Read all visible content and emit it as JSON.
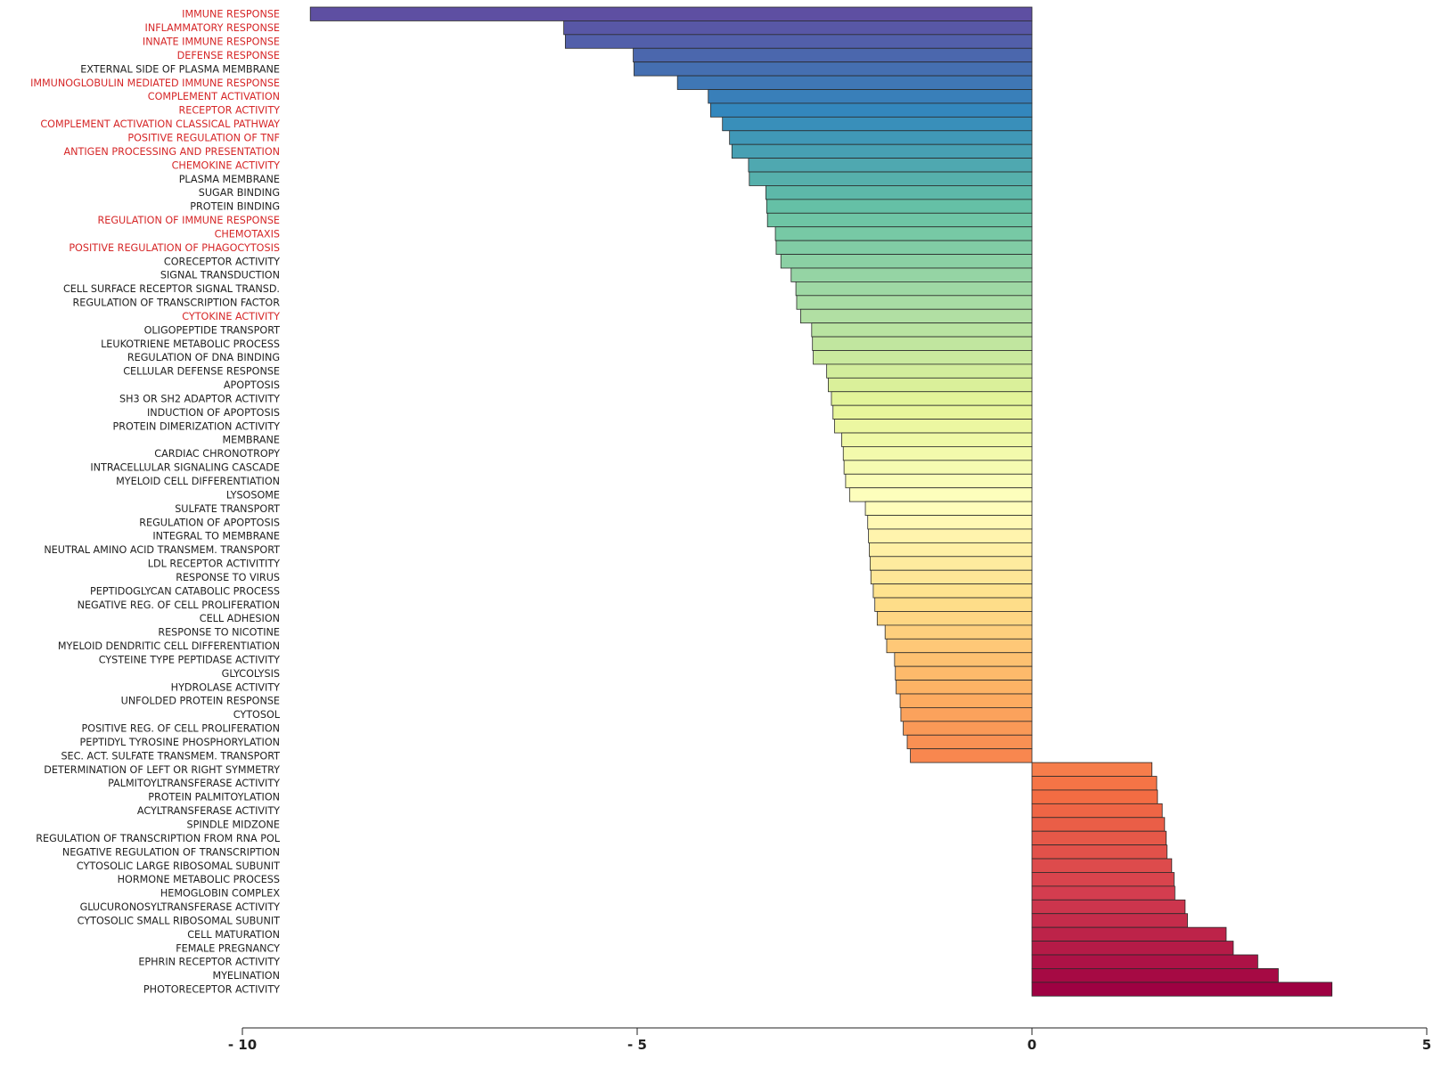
{
  "chart_data": {
    "type": "bar",
    "orientation": "horizontal",
    "title": "",
    "xlabel": "",
    "ylabel": "",
    "xlim": [
      -10,
      5
    ],
    "x_ticks": [
      {
        "value": -10,
        "label": "- 10"
      },
      {
        "value": -5,
        "label": "- 5"
      },
      {
        "value": 0,
        "label": "0"
      },
      {
        "value": 5,
        "label": "5"
      }
    ],
    "grid": false,
    "legend": "none",
    "label_colors": {
      "highlight": "#d62728",
      "normal": "#222222"
    },
    "color_scale": [
      "#5e4fa2",
      "#3288bd",
      "#66c2a5",
      "#abdda4",
      "#e6f598",
      "#ffffbf",
      "#fee08b",
      "#fdae61",
      "#f46d43",
      "#d53e4f",
      "#9e0142"
    ],
    "categories": [
      {
        "label": "IMMUNE RESPONSE",
        "value": -9.14,
        "highlight": true
      },
      {
        "label": "INFLAMMATORY RESPONSE",
        "value": -5.93,
        "highlight": true
      },
      {
        "label": "INNATE IMMUNE RESPONSE",
        "value": -5.91,
        "highlight": true
      },
      {
        "label": "DEFENSE RESPONSE",
        "value": -5.05,
        "highlight": true
      },
      {
        "label": "EXTERNAL SIDE OF PLASMA MEMBRANE",
        "value": -5.04,
        "highlight": false
      },
      {
        "label": "IMMUNOGLOBULIN MEDIATED IMMUNE RESPONSE",
        "value": -4.49,
        "highlight": true
      },
      {
        "label": "COMPLEMENT ACTIVATION",
        "value": -4.1,
        "highlight": true
      },
      {
        "label": "RECEPTOR ACTIVITY",
        "value": -4.07,
        "highlight": true
      },
      {
        "label": "COMPLEMENT ACTIVATION CLASSICAL PATHWAY",
        "value": -3.92,
        "highlight": true
      },
      {
        "label": "POSITIVE REGULATION OF TNF",
        "value": -3.83,
        "highlight": true
      },
      {
        "label": "ANTIGEN PROCESSING AND PRESENTATION",
        "value": -3.8,
        "highlight": true
      },
      {
        "label": "CHEMOKINE ACTIVITY",
        "value": -3.59,
        "highlight": true
      },
      {
        "label": "PLASMA MEMBRANE",
        "value": -3.58,
        "highlight": false
      },
      {
        "label": "SUGAR BINDING",
        "value": -3.37,
        "highlight": false
      },
      {
        "label": "PROTEIN BINDING",
        "value": -3.36,
        "highlight": false
      },
      {
        "label": "REGULATION OF IMMUNE RESPONSE",
        "value": -3.35,
        "highlight": true
      },
      {
        "label": "CHEMOTAXIS",
        "value": -3.25,
        "highlight": true
      },
      {
        "label": "POSITIVE REGULATION OF PHAGOCYTOSIS",
        "value": -3.24,
        "highlight": true
      },
      {
        "label": "CORECEPTOR ACTIVITY",
        "value": -3.18,
        "highlight": false
      },
      {
        "label": "SIGNAL TRANSDUCTION",
        "value": -3.05,
        "highlight": false
      },
      {
        "label": "CELL SURFACE RECEPTOR SIGNAL TRANSD.",
        "value": -2.99,
        "highlight": false
      },
      {
        "label": "REGULATION OF TRANSCRIPTION FACTOR",
        "value": -2.98,
        "highlight": false
      },
      {
        "label": "CYTOKINE ACTIVITY",
        "value": -2.93,
        "highlight": true
      },
      {
        "label": "OLIGOPEPTIDE TRANSPORT",
        "value": -2.79,
        "highlight": false
      },
      {
        "label": "LEUKOTRIENE METABOLIC PROCESS",
        "value": -2.78,
        "highlight": false
      },
      {
        "label": "REGULATION OF DNA BINDING",
        "value": -2.77,
        "highlight": false
      },
      {
        "label": "CELLULAR DEFENSE RESPONSE",
        "value": -2.6,
        "highlight": false
      },
      {
        "label": "APOPTOSIS",
        "value": -2.58,
        "highlight": false
      },
      {
        "label": "SH3 OR SH2 ADAPTOR ACTIVITY",
        "value": -2.54,
        "highlight": false
      },
      {
        "label": "INDUCTION OF APOPTOSIS",
        "value": -2.52,
        "highlight": false
      },
      {
        "label": "PROTEIN DIMERIZATION ACTIVITY",
        "value": -2.5,
        "highlight": false
      },
      {
        "label": "MEMBRANE",
        "value": -2.41,
        "highlight": false
      },
      {
        "label": "CARDIAC CHRONOTROPY",
        "value": -2.39,
        "highlight": false
      },
      {
        "label": "INTRACELLULAR SIGNALING CASCADE",
        "value": -2.38,
        "highlight": false
      },
      {
        "label": "MYELOID CELL DIFFERENTIATION",
        "value": -2.36,
        "highlight": false
      },
      {
        "label": "LYSOSOME",
        "value": -2.31,
        "highlight": false
      },
      {
        "label": "SULFATE TRANSPORT",
        "value": -2.11,
        "highlight": false
      },
      {
        "label": "REGULATION OF APOPTOSIS",
        "value": -2.08,
        "highlight": false
      },
      {
        "label": "INTEGRAL TO MEMBRANE",
        "value": -2.07,
        "highlight": false
      },
      {
        "label": "NEUTRAL AMINO ACID TRANSMEM. TRANSPORT",
        "value": -2.06,
        "highlight": false
      },
      {
        "label": "LDL RECEPTOR ACTIVITITY",
        "value": -2.05,
        "highlight": false
      },
      {
        "label": "RESPONSE TO VIRUS",
        "value": -2.04,
        "highlight": false
      },
      {
        "label": "PEPTIDOGLYCAN CATABOLIC PROCESS",
        "value": -2.01,
        "highlight": false
      },
      {
        "label": "NEGATIVE REG. OF CELL PROLIFERATION",
        "value": -1.99,
        "highlight": false
      },
      {
        "label": "CELL ADHESION",
        "value": -1.96,
        "highlight": false
      },
      {
        "label": "RESPONSE TO NICOTINE",
        "value": -1.86,
        "highlight": false
      },
      {
        "label": "MYELOID DENDRITIC CELL DIFFERENTIATION",
        "value": -1.84,
        "highlight": false
      },
      {
        "label": "CYSTEINE TYPE PEPTIDASE ACTIVITY",
        "value": -1.74,
        "highlight": false
      },
      {
        "label": "GLYCOLYSIS",
        "value": -1.73,
        "highlight": false
      },
      {
        "label": "HYDROLASE ACTIVITY",
        "value": -1.72,
        "highlight": false
      },
      {
        "label": "UNFOLDED PROTEIN RESPONSE",
        "value": -1.67,
        "highlight": false
      },
      {
        "label": "CYTOSOL",
        "value": -1.66,
        "highlight": false
      },
      {
        "label": "POSITIVE REG. OF CELL PROLIFERATION",
        "value": -1.63,
        "highlight": false
      },
      {
        "label": "PEPTIDYL TYROSINE PHOSPHORYLATION",
        "value": -1.58,
        "highlight": false
      },
      {
        "label": "SEC. ACT. SULFATE TRANSMEM. TRANSPORT",
        "value": -1.54,
        "highlight": false
      },
      {
        "label": "DETERMINATION OF LEFT OR RIGHT SYMMETRY",
        "value": 1.52,
        "highlight": false
      },
      {
        "label": "PALMITOYLTRANSFERASE ACTIVITY",
        "value": 1.58,
        "highlight": false
      },
      {
        "label": "PROTEIN PALMITOYLATION",
        "value": 1.59,
        "highlight": false
      },
      {
        "label": "ACYLTRANSFERASE ACTIVITY",
        "value": 1.65,
        "highlight": false
      },
      {
        "label": "SPINDLE MIDZONE",
        "value": 1.68,
        "highlight": false
      },
      {
        "label": "REGULATION OF TRANSCRIPTION FROM RNA POL",
        "value": 1.7,
        "highlight": false
      },
      {
        "label": "NEGATIVE REGULATION OF TRANSCRIPTION",
        "value": 1.71,
        "highlight": false
      },
      {
        "label": "CYTOSOLIC LARGE RIBOSOMAL SUBUNIT",
        "value": 1.77,
        "highlight": false
      },
      {
        "label": "HORMONE METABOLIC PROCESS",
        "value": 1.8,
        "highlight": false
      },
      {
        "label": "HEMOGLOBIN COMPLEX",
        "value": 1.81,
        "highlight": false
      },
      {
        "label": "GLUCURONOSYLTRANSFERASE ACTIVITY",
        "value": 1.94,
        "highlight": false
      },
      {
        "label": "CYTOSOLIC SMALL RIBOSOMAL SUBUNIT",
        "value": 1.97,
        "highlight": false
      },
      {
        "label": "CELL MATURATION",
        "value": 2.46,
        "highlight": false
      },
      {
        "label": "FEMALE PREGNANCY",
        "value": 2.55,
        "highlight": false
      },
      {
        "label": "EPHRIN RECEPTOR ACTIVITY",
        "value": 2.86,
        "highlight": false
      },
      {
        "label": "MYELINATION",
        "value": 3.12,
        "highlight": false
      },
      {
        "label": "PHOTORECEPTOR ACTIVITY",
        "value": 3.8,
        "highlight": false
      }
    ]
  }
}
